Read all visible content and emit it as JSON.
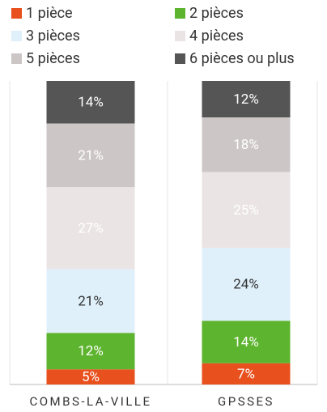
{
  "chart_data": {
    "type": "stacked_bar",
    "categories": [
      "COMBS-LA-VILLE",
      "GPSSES"
    ],
    "ylim": [
      0,
      100
    ],
    "series": [
      {
        "name": "1 pièce",
        "color": "#e8501e",
        "label_color": "#ffffff",
        "values": [
          5,
          7
        ],
        "value_labels": [
          "5%",
          "7%"
        ]
      },
      {
        "name": "2 pièces",
        "color": "#5db42e",
        "label_color": "#ffffff",
        "values": [
          12,
          14
        ],
        "value_labels": [
          "12%",
          "14%"
        ]
      },
      {
        "name": "3 pièces",
        "color": "#dff0fb",
        "label_color": "#333333",
        "values": [
          21,
          24
        ],
        "value_labels": [
          "21%",
          "24%"
        ]
      },
      {
        "name": "4 pièces",
        "color": "#ebe4e4",
        "label_color": "#ffffff",
        "values": [
          27,
          25
        ],
        "value_labels": [
          "27%",
          "25%"
        ]
      },
      {
        "name": "5 pièces",
        "color": "#cdc6c6",
        "label_color": "#ffffff",
        "values": [
          21,
          18
        ],
        "value_labels": [
          "21%",
          "18%"
        ]
      },
      {
        "name": "6 pièces ou plus",
        "color": "#555555",
        "label_color": "#ffffff",
        "values": [
          14,
          12
        ],
        "value_labels": [
          "14%",
          "12%"
        ]
      }
    ]
  }
}
